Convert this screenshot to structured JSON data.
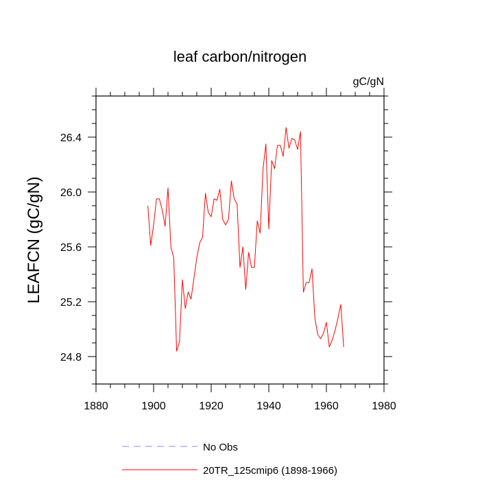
{
  "chart_data": {
    "type": "line",
    "title": "leaf carbon/nitrogen",
    "units_label": "gC/gN",
    "xlabel": "",
    "ylabel": "LEAFCN  (gC/gN)",
    "xlim": [
      1880,
      1980
    ],
    "ylim": [
      24.6,
      26.7
    ],
    "x_ticks": [
      1880,
      1900,
      1920,
      1940,
      1960,
      1980
    ],
    "x_tick_labels": [
      "1880",
      "1900",
      "1920",
      "1940",
      "1960",
      "1980"
    ],
    "y_ticks": [
      24.8,
      25.2,
      25.6,
      26.0,
      26.4
    ],
    "y_tick_labels": [
      "24.8",
      "25.2",
      "25.6",
      "26.0",
      "26.4"
    ],
    "grid": false,
    "legend_position": "bottom",
    "series": [
      {
        "name": "20TR_125cmip6 (1898-1966)",
        "color": "#ff0000",
        "style": "solid",
        "x": [
          1898,
          1899,
          1900,
          1901,
          1902,
          1903,
          1904,
          1905,
          1906,
          1907,
          1908,
          1909,
          1910,
          1911,
          1912,
          1913,
          1914,
          1915,
          1916,
          1917,
          1918,
          1919,
          1920,
          1921,
          1922,
          1923,
          1924,
          1925,
          1926,
          1927,
          1928,
          1929,
          1930,
          1931,
          1932,
          1933,
          1934,
          1935,
          1936,
          1937,
          1938,
          1939,
          1940,
          1941,
          1942,
          1943,
          1944,
          1945,
          1946,
          1947,
          1948,
          1949,
          1950,
          1951,
          1952,
          1953,
          1954,
          1955,
          1956,
          1957,
          1958,
          1959,
          1960,
          1961,
          1962,
          1963,
          1964,
          1965,
          1966
        ],
        "values": [
          25.9,
          25.61,
          25.76,
          25.95,
          25.95,
          25.87,
          25.75,
          26.03,
          25.6,
          25.52,
          24.84,
          24.91,
          25.36,
          25.15,
          25.27,
          25.22,
          25.37,
          25.52,
          25.63,
          25.67,
          25.99,
          25.85,
          25.82,
          25.95,
          25.94,
          26.02,
          25.8,
          25.76,
          25.8,
          26.08,
          25.95,
          25.91,
          25.45,
          25.6,
          25.29,
          25.56,
          25.45,
          25.45,
          25.79,
          25.7,
          26.17,
          26.35,
          25.73,
          26.23,
          26.17,
          26.34,
          26.34,
          26.26,
          26.47,
          26.32,
          26.39,
          26.38,
          26.31,
          26.44,
          25.27,
          25.34,
          25.34,
          25.44,
          25.08,
          24.96,
          24.93,
          24.97,
          25.05,
          24.87,
          24.92,
          24.99,
          25.08,
          25.18,
          24.87
        ]
      },
      {
        "name": "No Obs",
        "color": "#8a8aff",
        "style": "dashed",
        "x": [],
        "values": []
      }
    ]
  }
}
